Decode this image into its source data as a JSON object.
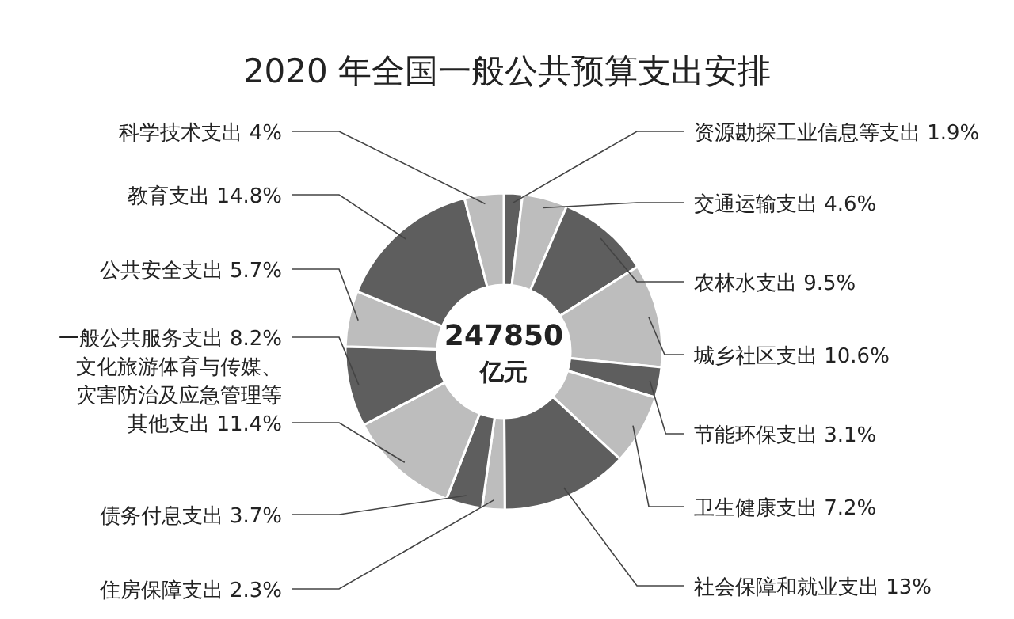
{
  "chart_data": {
    "type": "donut",
    "title": "2020 年全国一般公共预算支出安排",
    "categories": [
      "资源勘探工业信息等支出",
      "交通运输支出",
      "农林水支出",
      "城乡社区支出",
      "节能环保支出",
      "卫生健康支出",
      "社会保障和就业支出",
      "住房保障支出",
      "债务付息支出",
      "文化旅游体育与传媒、灾害防治及应急管理等其他支出",
      "一般公共服务支出",
      "公共安全支出",
      "教育支出",
      "科学技术支出"
    ],
    "values": [
      1.9,
      4.6,
      9.5,
      10.6,
      3.1,
      7.2,
      13,
      2.3,
      3.7,
      11.4,
      8.2,
      5.7,
      14.8,
      4
    ],
    "value_labels": [
      "1.9%",
      "4.6%",
      "9.5%",
      "10.6%",
      "3.1%",
      "7.2%",
      "13%",
      "2.3%",
      "3.7%",
      "11.4%",
      "8.2%",
      "5.7%",
      "14.8%",
      "4%"
    ],
    "colors": [
      "#5e5e5e",
      "#bdbdbd",
      "#5e5e5e",
      "#bdbdbd",
      "#5e5e5e",
      "#bdbdbd",
      "#5e5e5e",
      "#bdbdbd",
      "#5e5e5e",
      "#bdbdbd",
      "#5e5e5e",
      "#bdbdbd",
      "#5e5e5e",
      "#bdbdbd"
    ],
    "annotations": [
      "247850",
      "亿元"
    ]
  }
}
